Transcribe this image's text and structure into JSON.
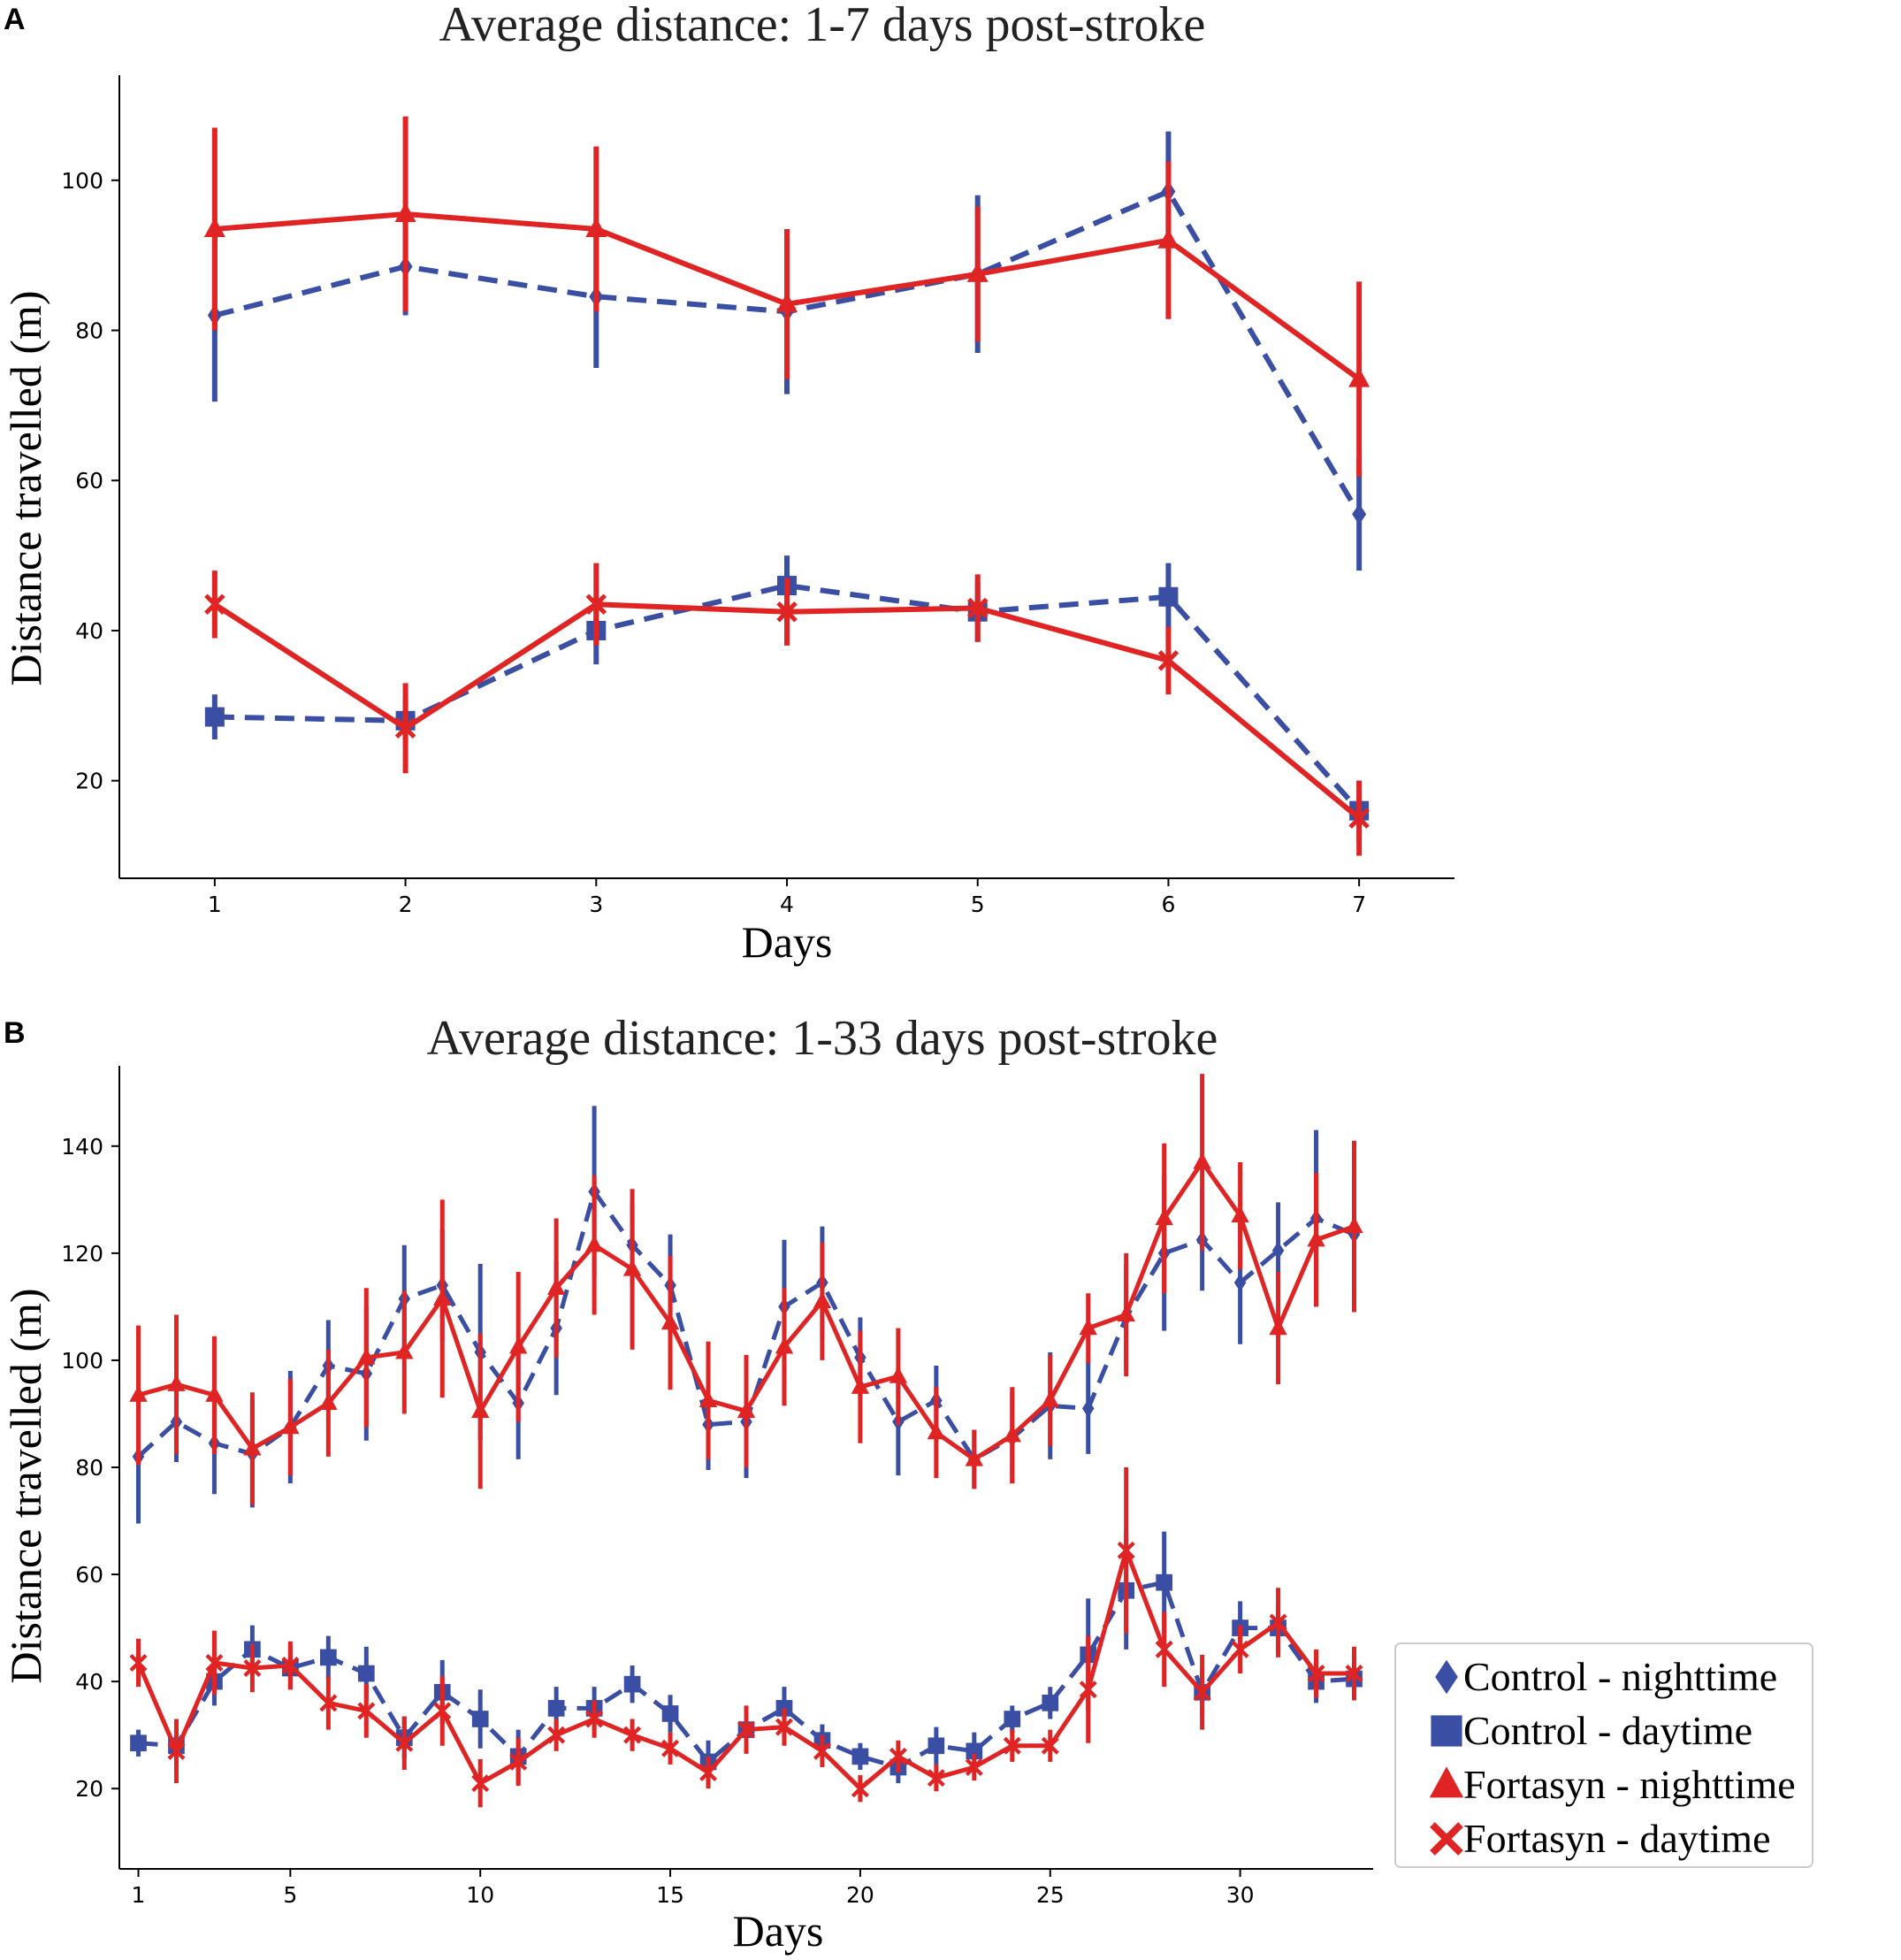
{
  "colors": {
    "control": "#3a4fa3",
    "fortasyn": "#e02424",
    "axis": "#000000"
  },
  "chart_data": [
    {
      "type": "line",
      "panel": "A",
      "title": "Average distance: 1-7 days post-stroke",
      "xlabel": "Days",
      "ylabel": "Distance travelled (m)",
      "xlim": [
        0.5,
        7.5
      ],
      "ylim": [
        7,
        114
      ],
      "xticks": [
        1,
        2,
        3,
        4,
        5,
        6,
        7
      ],
      "yticks": [
        20,
        40,
        60,
        80,
        100
      ],
      "x": [
        1,
        2,
        3,
        4,
        5,
        6,
        7
      ],
      "series": [
        {
          "name": "Control - nighttime",
          "group": "control",
          "marker": "diamond",
          "dashed": true,
          "values": [
            82,
            88.5,
            84.5,
            82.5,
            87.5,
            98.5,
            55.5
          ],
          "errors": [
            11.5,
            6.5,
            9.5,
            11,
            10.5,
            8,
            7.5
          ]
        },
        {
          "name": "Control - daytime",
          "group": "control",
          "marker": "square",
          "dashed": true,
          "values": [
            28.5,
            28,
            40,
            46,
            42.5,
            44.5,
            16
          ],
          "errors": [
            3,
            3,
            4.5,
            4,
            4,
            4.5,
            4
          ]
        },
        {
          "name": "Fortasyn - nighttime",
          "group": "fortasyn",
          "marker": "triangle",
          "dashed": false,
          "values": [
            93.5,
            95.5,
            93.5,
            83.5,
            87.5,
            92,
            73.5
          ],
          "errors": [
            13.5,
            13,
            11,
            10,
            9,
            10.5,
            13
          ]
        },
        {
          "name": "Fortasyn - daytime",
          "group": "fortasyn",
          "marker": "x",
          "dashed": false,
          "values": [
            43.5,
            27,
            43.5,
            42.5,
            43,
            36,
            15
          ],
          "errors": [
            4.5,
            6,
            5.5,
            4.5,
            4.5,
            4.5,
            5
          ]
        }
      ]
    },
    {
      "type": "line",
      "panel": "B",
      "title": "Average distance: 1-33 days post-stroke",
      "xlabel": "Days",
      "ylabel": "Distance travelled (m)",
      "xlim": [
        0.5,
        33.5
      ],
      "ylim": [
        5,
        155
      ],
      "xticks": [
        1,
        5,
        10,
        15,
        20,
        25,
        30
      ],
      "yticks": [
        20,
        40,
        60,
        80,
        100,
        120,
        140
      ],
      "x": [
        1,
        2,
        3,
        4,
        5,
        6,
        7,
        8,
        9,
        10,
        11,
        12,
        13,
        14,
        15,
        16,
        17,
        18,
        19,
        20,
        21,
        22,
        23,
        24,
        25,
        26,
        27,
        28,
        29,
        30,
        31,
        32,
        33
      ],
      "series": [
        {
          "name": "Control - nighttime",
          "group": "control",
          "marker": "diamond",
          "dashed": true,
          "values": [
            82,
            88.5,
            84.5,
            82.5,
            87.5,
            99,
            97.5,
            111.5,
            114,
            101.5,
            92,
            106,
            131.5,
            121.5,
            114,
            88,
            88.5,
            110,
            114.5,
            100.5,
            88.5,
            92.5,
            81.5,
            85.5,
            91.5,
            91,
            108,
            120,
            122.5,
            114.5,
            120.5,
            126.5,
            123.5
          ],
          "errors": [
            12.5,
            7.5,
            9.5,
            10,
            10.5,
            8.5,
            12.5,
            10,
            10.5,
            16.5,
            10.5,
            12.5,
            16,
            7.5,
            9.5,
            8.5,
            10.5,
            12.5,
            10.5,
            7.5,
            10,
            6.5,
            5.5,
            8.5,
            10,
            8.5,
            10,
            14.5,
            9.5,
            11.5,
            9,
            16.5,
            12
          ]
        },
        {
          "name": "Control - daytime",
          "group": "control",
          "marker": "square",
          "dashed": true,
          "values": [
            28.5,
            28,
            40,
            46,
            42.5,
            44.5,
            41.5,
            29.5,
            38,
            33,
            26,
            35,
            35,
            39.5,
            34,
            25,
            31,
            35,
            29,
            26,
            24,
            28,
            27,
            33,
            36,
            45,
            57,
            58.5,
            38,
            50,
            50,
            40,
            40.5
          ],
          "errors": [
            2.5,
            3.5,
            4.5,
            4.5,
            4,
            4,
            5,
            4,
            6,
            5.5,
            5,
            4,
            4,
            3.5,
            3.5,
            4,
            4,
            4,
            3,
            2.5,
            3,
            3.5,
            3.5,
            2.5,
            3,
            10.5,
            11,
            9.5,
            4.5,
            5,
            4.5,
            4,
            4
          ]
        },
        {
          "name": "Fortasyn - nighttime",
          "group": "fortasyn",
          "marker": "triangle",
          "dashed": false,
          "values": [
            93.5,
            95.5,
            93.5,
            83.5,
            87.5,
            92,
            100.5,
            101.5,
            111.5,
            90.5,
            102.5,
            113.5,
            121.5,
            117,
            107,
            92.5,
            90.5,
            102.5,
            111,
            95,
            97,
            86.5,
            81.5,
            86,
            92.5,
            106,
            108.5,
            126.5,
            137,
            127,
            106,
            122.5,
            125
          ],
          "errors": [
            13,
            13,
            11,
            10.5,
            9,
            10,
            13,
            11.5,
            18.5,
            14.5,
            14,
            13,
            13,
            15,
            12.5,
            11,
            10.5,
            11,
            11,
            10.5,
            9,
            8.5,
            5.5,
            9,
            8.5,
            6.5,
            11.5,
            14,
            16.5,
            10,
            10.5,
            12.5,
            16
          ]
        },
        {
          "name": "Fortasyn - daytime",
          "group": "fortasyn",
          "marker": "x",
          "dashed": false,
          "values": [
            43.5,
            27,
            43.5,
            42.5,
            43,
            36,
            34.5,
            28.5,
            34.5,
            21,
            25,
            30,
            33,
            30,
            27.5,
            23,
            31,
            31.5,
            27,
            20,
            26,
            22,
            24,
            28,
            28,
            38.5,
            64.5,
            46,
            38,
            46,
            51,
            41.5,
            41.5
          ],
          "errors": [
            4.5,
            6,
            6,
            4.5,
            4.5,
            5,
            5,
            5,
            6.5,
            4.5,
            4.5,
            3,
            3.5,
            3,
            3,
            3,
            4.5,
            3.5,
            3,
            2.5,
            3,
            2.5,
            2.5,
            3,
            3,
            10,
            15.5,
            7,
            7,
            4.5,
            6.5,
            4.5,
            5
          ]
        }
      ],
      "legend": {
        "position": "lower-right-outside",
        "entries": [
          "Control - nighttime",
          "Control - daytime",
          "Fortasyn - nighttime",
          "Fortasyn - daytime"
        ]
      }
    }
  ]
}
